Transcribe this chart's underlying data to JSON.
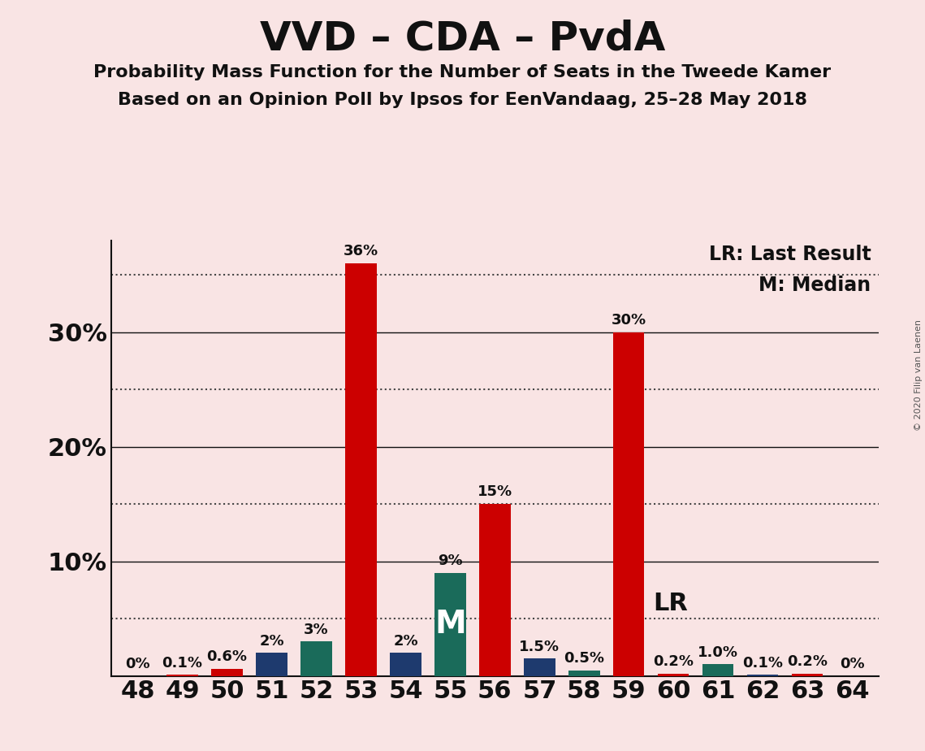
{
  "title": "VVD – CDA – PvdA",
  "subtitle1": "Probability Mass Function for the Number of Seats in the Tweede Kamer",
  "subtitle2": "Based on an Opinion Poll by Ipsos for EenVandaag, 25–28 May 2018",
  "copyright": "© 2020 Filip van Laenen",
  "background_color": "#f9e4e4",
  "bar_data": [
    {
      "seat": 48,
      "value": 0.0,
      "color": "#cc0000",
      "label": "0%"
    },
    {
      "seat": 49,
      "value": 0.1,
      "color": "#cc0000",
      "label": "0.1%"
    },
    {
      "seat": 50,
      "value": 0.6,
      "color": "#cc0000",
      "label": "0.6%"
    },
    {
      "seat": 51,
      "value": 2.0,
      "color": "#1e3a6e",
      "label": "2%"
    },
    {
      "seat": 52,
      "value": 3.0,
      "color": "#1a6b5a",
      "label": "3%"
    },
    {
      "seat": 53,
      "value": 36.0,
      "color": "#cc0000",
      "label": "36%"
    },
    {
      "seat": 54,
      "value": 2.0,
      "color": "#1e3a6e",
      "label": "2%"
    },
    {
      "seat": 55,
      "value": 9.0,
      "color": "#1a6b5a",
      "label": "9%"
    },
    {
      "seat": 56,
      "value": 15.0,
      "color": "#cc0000",
      "label": "15%"
    },
    {
      "seat": 57,
      "value": 1.5,
      "color": "#1e3a6e",
      "label": "1.5%"
    },
    {
      "seat": 58,
      "value": 0.5,
      "color": "#1a6b5a",
      "label": "0.5%"
    },
    {
      "seat": 59,
      "value": 30.0,
      "color": "#cc0000",
      "label": "30%"
    },
    {
      "seat": 60,
      "value": 0.2,
      "color": "#cc0000",
      "label": "0.2%"
    },
    {
      "seat": 61,
      "value": 1.0,
      "color": "#1a6b5a",
      "label": "1.0%"
    },
    {
      "seat": 62,
      "value": 0.1,
      "color": "#1e3a6e",
      "label": "0.1%"
    },
    {
      "seat": 63,
      "value": 0.2,
      "color": "#cc0000",
      "label": "0.2%"
    },
    {
      "seat": 64,
      "value": 0.0,
      "color": "#1e3a6e",
      "label": "0%"
    }
  ],
  "median_seat": 55,
  "lr_seat": 59,
  "median_line_y": 5.0,
  "solid_lines": [
    10,
    20,
    30
  ],
  "dotted_lines": [
    5,
    15,
    25,
    35
  ],
  "ylim": [
    0,
    38
  ],
  "lr_label": "LR",
  "median_label": "M",
  "legend_lr": "LR: Last Result",
  "legend_m": "M: Median",
  "dotted_line_color": "#444444",
  "solid_line_color": "#111111",
  "title_fontsize": 36,
  "subtitle_fontsize": 16,
  "bar_label_fontsize": 13,
  "tick_fontsize": 22,
  "legend_fontsize": 17,
  "lr_fontsize": 22,
  "m_fontsize": 28
}
